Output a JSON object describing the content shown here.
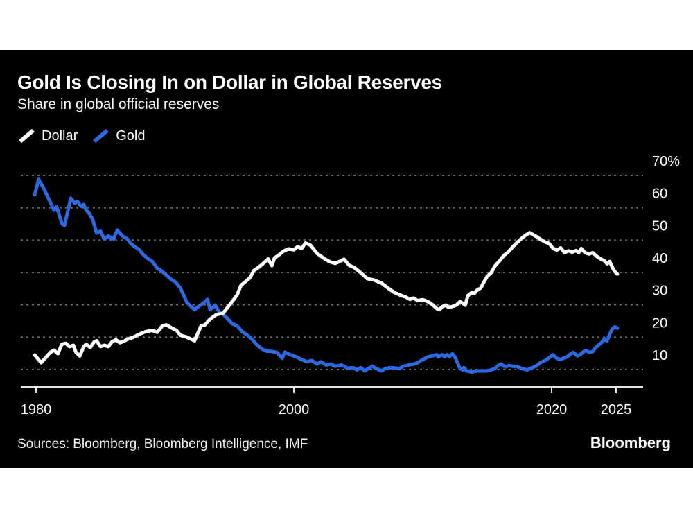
{
  "card": {
    "title": "Gold Is Closing In on Dollar in Global Reserves",
    "subtitle": "Share in global official reserves",
    "source": "Sources: Bloomberg, Bloomberg Intelligence, IMF",
    "brand": "Bloomberg"
  },
  "colors": {
    "background": "#000000",
    "dollar_line": "#ffffff",
    "gold_line": "#2c68e0",
    "gridline": "#6e6e6e",
    "axis": "#e6e6e6",
    "text": "#ffffff"
  },
  "legend": [
    {
      "label": "Dollar",
      "color": "#ffffff"
    },
    {
      "label": "Gold",
      "color": "#2c68e0"
    }
  ],
  "chart_data": {
    "type": "line",
    "title": "Gold Is Closing In on Dollar in Global Reserves",
    "subtitle": "Share in global official reserves",
    "xlabel": "",
    "ylabel": "%",
    "xlim": [
      1978.8,
      2027.3
    ],
    "ylim": [
      4.6,
      74
    ],
    "grid": "horizontal-dotted",
    "legend_position": "top-left",
    "x_ticks": [
      {
        "year": 1980,
        "label": "1980"
      },
      {
        "year": 2000,
        "label": "2000"
      },
      {
        "year": 2020,
        "label": "2020"
      },
      {
        "year": 2025,
        "label": "2025"
      }
    ],
    "y_ticks": [
      {
        "value": 70,
        "label": "70%"
      },
      {
        "value": 60,
        "label": "60"
      },
      {
        "value": 50,
        "label": "50"
      },
      {
        "value": 40,
        "label": "40"
      },
      {
        "value": 30,
        "label": "30"
      },
      {
        "value": 20,
        "label": "20"
      },
      {
        "value": 10,
        "label": "10"
      }
    ],
    "series": [
      {
        "name": "Gold",
        "color": "#2c68e0",
        "points": [
          [
            1979.9,
            64.0
          ],
          [
            1980.2,
            68.8
          ],
          [
            1980.6,
            66.0
          ],
          [
            1981.1,
            61.7
          ],
          [
            1981.4,
            59.2
          ],
          [
            1981.6,
            60.3
          ],
          [
            1982.0,
            55.2
          ],
          [
            1982.2,
            54.4
          ],
          [
            1982.7,
            63.0
          ],
          [
            1983.0,
            61.4
          ],
          [
            1983.2,
            62.0
          ],
          [
            1983.5,
            60.4
          ],
          [
            1983.7,
            61.0
          ],
          [
            1983.9,
            59.2
          ],
          [
            1984.1,
            58.4
          ],
          [
            1984.4,
            56.4
          ],
          [
            1984.7,
            52.2
          ],
          [
            1985.0,
            52.8
          ],
          [
            1985.3,
            50.3
          ],
          [
            1985.6,
            51.3
          ],
          [
            1986.0,
            50.3
          ],
          [
            1986.3,
            53.1
          ],
          [
            1986.7,
            51.3
          ],
          [
            1987.1,
            50.3
          ],
          [
            1987.3,
            49.2
          ],
          [
            1987.6,
            48.1
          ],
          [
            1988.0,
            47.1
          ],
          [
            1988.3,
            45.6
          ],
          [
            1988.7,
            44.2
          ],
          [
            1989.0,
            43.5
          ],
          [
            1989.4,
            41.3
          ],
          [
            1989.7,
            40.6
          ],
          [
            1990.1,
            39.2
          ],
          [
            1990.5,
            37.8
          ],
          [
            1990.8,
            37.1
          ],
          [
            1991.2,
            35.2
          ],
          [
            1991.7,
            30.8
          ],
          [
            1992.0,
            29.6
          ],
          [
            1992.3,
            28.5
          ],
          [
            1992.6,
            29.5
          ],
          [
            1993.0,
            30.6
          ],
          [
            1993.3,
            31.7
          ],
          [
            1993.5,
            28.5
          ],
          [
            1993.9,
            29.9
          ],
          [
            1994.2,
            27.8
          ],
          [
            1994.5,
            27.1
          ],
          [
            1994.8,
            26.0
          ],
          [
            1995.2,
            24.2
          ],
          [
            1995.6,
            23.5
          ],
          [
            1996.0,
            21.7
          ],
          [
            1996.4,
            20.6
          ],
          [
            1996.8,
            19.2
          ],
          [
            1997.1,
            17.8
          ],
          [
            1997.5,
            16.4
          ],
          [
            1997.9,
            15.7
          ],
          [
            1998.3,
            15.6
          ],
          [
            1998.7,
            15.3
          ],
          [
            1999.1,
            13.5
          ],
          [
            1999.3,
            15.4
          ],
          [
            1999.7,
            14.6
          ],
          [
            2000.2,
            13.9
          ],
          [
            2000.6,
            13.1
          ],
          [
            2001.0,
            12.4
          ],
          [
            2001.4,
            12.8
          ],
          [
            2001.8,
            11.7
          ],
          [
            2002.1,
            12.4
          ],
          [
            2002.5,
            11.4
          ],
          [
            2002.9,
            11.7
          ],
          [
            2003.2,
            11.0
          ],
          [
            2003.7,
            11.4
          ],
          [
            2004.2,
            10.4
          ],
          [
            2004.6,
            10.6
          ],
          [
            2004.9,
            9.9
          ],
          [
            2005.2,
            10.6
          ],
          [
            2005.5,
            9.6
          ],
          [
            2005.9,
            10.6
          ],
          [
            2006.1,
            11.0
          ],
          [
            2006.4,
            10.3
          ],
          [
            2006.8,
            9.6
          ],
          [
            2007.1,
            10.3
          ],
          [
            2007.5,
            10.6
          ],
          [
            2007.8,
            10.5
          ],
          [
            2008.2,
            10.3
          ],
          [
            2008.5,
            11.0
          ],
          [
            2008.9,
            11.4
          ],
          [
            2009.3,
            11.7
          ],
          [
            2009.6,
            12.1
          ],
          [
            2010.0,
            13.1
          ],
          [
            2010.4,
            13.9
          ],
          [
            2010.7,
            14.2
          ],
          [
            2011.1,
            14.6
          ],
          [
            2011.2,
            13.9
          ],
          [
            2011.5,
            14.6
          ],
          [
            2011.7,
            13.9
          ],
          [
            2011.9,
            14.6
          ],
          [
            2012.1,
            14.0
          ],
          [
            2012.3,
            14.9
          ],
          [
            2012.5,
            13.9
          ],
          [
            2012.7,
            12.1
          ],
          [
            2012.9,
            10.3
          ],
          [
            2013.1,
            9.9
          ],
          [
            2013.2,
            10.6
          ],
          [
            2013.4,
            9.6
          ],
          [
            2013.8,
            9.2
          ],
          [
            2014.2,
            9.6
          ],
          [
            2014.6,
            9.5
          ],
          [
            2015.0,
            9.6
          ],
          [
            2015.3,
            9.9
          ],
          [
            2015.6,
            10.3
          ],
          [
            2015.9,
            11.4
          ],
          [
            2016.1,
            11.7
          ],
          [
            2016.4,
            10.8
          ],
          [
            2016.7,
            11.2
          ],
          [
            2017.0,
            11.0
          ],
          [
            2017.4,
            10.8
          ],
          [
            2017.7,
            10.3
          ],
          [
            2018.1,
            9.9
          ],
          [
            2018.5,
            10.6
          ],
          [
            2018.8,
            11.0
          ],
          [
            2019.1,
            12.1
          ],
          [
            2019.5,
            12.8
          ],
          [
            2019.9,
            13.9
          ],
          [
            2020.1,
            14.6
          ],
          [
            2020.4,
            13.5
          ],
          [
            2020.7,
            13.1
          ],
          [
            2020.9,
            13.5
          ],
          [
            2021.2,
            13.9
          ],
          [
            2021.5,
            14.9
          ],
          [
            2021.7,
            15.3
          ],
          [
            2022.0,
            14.2
          ],
          [
            2022.2,
            14.6
          ],
          [
            2022.5,
            15.6
          ],
          [
            2022.7,
            15.9
          ],
          [
            2022.9,
            15.3
          ],
          [
            2023.2,
            15.6
          ],
          [
            2023.4,
            16.7
          ],
          [
            2023.7,
            17.8
          ],
          [
            2024.0,
            18.8
          ],
          [
            2024.1,
            19.6
          ],
          [
            2024.3,
            18.8
          ],
          [
            2024.5,
            20.9
          ],
          [
            2024.7,
            22.5
          ],
          [
            2024.9,
            23.2
          ],
          [
            2025.1,
            22.8
          ]
        ]
      },
      {
        "name": "Dollar",
        "color": "#ffffff",
        "points": [
          [
            1979.9,
            14.5
          ],
          [
            1980.4,
            12.1
          ],
          [
            1981.1,
            15.3
          ],
          [
            1981.4,
            16.0
          ],
          [
            1981.7,
            14.9
          ],
          [
            1982.0,
            17.8
          ],
          [
            1982.3,
            18.1
          ],
          [
            1982.6,
            17.1
          ],
          [
            1982.9,
            17.5
          ],
          [
            1983.1,
            15.3
          ],
          [
            1983.4,
            14.2
          ],
          [
            1983.7,
            17.1
          ],
          [
            1983.9,
            17.8
          ],
          [
            1984.2,
            16.8
          ],
          [
            1984.5,
            18.5
          ],
          [
            1984.7,
            18.9
          ],
          [
            1985.0,
            17.1
          ],
          [
            1985.3,
            17.5
          ],
          [
            1985.6,
            17.1
          ],
          [
            1985.9,
            18.6
          ],
          [
            1986.2,
            19.2
          ],
          [
            1986.5,
            18.3
          ],
          [
            1986.8,
            18.7
          ],
          [
            1987.1,
            19.4
          ],
          [
            1987.5,
            19.9
          ],
          [
            1988.0,
            20.9
          ],
          [
            1988.5,
            21.7
          ],
          [
            1989.0,
            22.1
          ],
          [
            1989.4,
            21.5
          ],
          [
            1989.8,
            23.5
          ],
          [
            1990.1,
            23.8
          ],
          [
            1990.5,
            22.9
          ],
          [
            1990.9,
            22.1
          ],
          [
            1991.2,
            20.6
          ],
          [
            1991.7,
            20.0
          ],
          [
            1992.3,
            18.9
          ],
          [
            1992.8,
            23.5
          ],
          [
            1993.1,
            23.8
          ],
          [
            1993.5,
            25.6
          ],
          [
            1994.0,
            27.0
          ],
          [
            1994.5,
            27.4
          ],
          [
            1995.0,
            29.9
          ],
          [
            1995.3,
            31.5
          ],
          [
            1995.6,
            33.1
          ],
          [
            1995.9,
            36.0
          ],
          [
            1996.2,
            37.0
          ],
          [
            1996.6,
            38.4
          ],
          [
            1996.9,
            40.6
          ],
          [
            1997.3,
            41.7
          ],
          [
            1997.6,
            42.7
          ],
          [
            1998.0,
            44.2
          ],
          [
            1998.3,
            42.1
          ],
          [
            1998.5,
            44.5
          ],
          [
            1998.8,
            45.3
          ],
          [
            1999.2,
            46.6
          ],
          [
            1999.6,
            47.3
          ],
          [
            2000.0,
            47.0
          ],
          [
            2000.3,
            48.0
          ],
          [
            2000.6,
            47.4
          ],
          [
            2000.9,
            49.1
          ],
          [
            2001.3,
            48.4
          ],
          [
            2001.8,
            45.9
          ],
          [
            2002.4,
            44.2
          ],
          [
            2002.8,
            43.3
          ],
          [
            2003.2,
            42.8
          ],
          [
            2003.6,
            43.5
          ],
          [
            2003.9,
            44.1
          ],
          [
            2004.3,
            42.2
          ],
          [
            2004.7,
            41.5
          ],
          [
            2005.2,
            39.9
          ],
          [
            2005.7,
            38.1
          ],
          [
            2006.2,
            37.7
          ],
          [
            2006.8,
            36.7
          ],
          [
            2007.3,
            35.2
          ],
          [
            2007.8,
            33.8
          ],
          [
            2008.4,
            32.8
          ],
          [
            2008.7,
            32.4
          ],
          [
            2009.0,
            31.7
          ],
          [
            2009.3,
            32.1
          ],
          [
            2009.6,
            31.3
          ],
          [
            2010.0,
            31.6
          ],
          [
            2010.4,
            31.0
          ],
          [
            2010.8,
            29.9
          ],
          [
            2011.1,
            28.8
          ],
          [
            2011.3,
            28.5
          ],
          [
            2011.5,
            29.4
          ],
          [
            2011.8,
            29.9
          ],
          [
            2012.0,
            29.2
          ],
          [
            2012.3,
            29.5
          ],
          [
            2012.6,
            29.9
          ],
          [
            2012.9,
            31.0
          ],
          [
            2013.1,
            30.5
          ],
          [
            2013.3,
            29.9
          ],
          [
            2013.5,
            32.8
          ],
          [
            2013.8,
            33.8
          ],
          [
            2014.0,
            33.5
          ],
          [
            2014.2,
            34.5
          ],
          [
            2014.5,
            35.2
          ],
          [
            2014.8,
            37.4
          ],
          [
            2015.0,
            38.8
          ],
          [
            2015.3,
            39.9
          ],
          [
            2015.6,
            42.0
          ],
          [
            2016.0,
            43.8
          ],
          [
            2016.3,
            45.3
          ],
          [
            2016.6,
            46.2
          ],
          [
            2017.0,
            48.0
          ],
          [
            2017.3,
            49.2
          ],
          [
            2017.6,
            50.3
          ],
          [
            2018.0,
            51.6
          ],
          [
            2018.3,
            52.3
          ],
          [
            2018.6,
            51.6
          ],
          [
            2018.9,
            50.9
          ],
          [
            2019.2,
            50.1
          ],
          [
            2019.5,
            49.4
          ],
          [
            2019.8,
            49.0
          ],
          [
            2020.1,
            47.5
          ],
          [
            2020.4,
            46.9
          ],
          [
            2020.7,
            47.6
          ],
          [
            2021.0,
            46.1
          ],
          [
            2021.3,
            46.7
          ],
          [
            2021.6,
            46.3
          ],
          [
            2021.9,
            46.8
          ],
          [
            2022.1,
            46.1
          ],
          [
            2022.3,
            47.4
          ],
          [
            2022.6,
            46.1
          ],
          [
            2022.9,
            45.7
          ],
          [
            2023.2,
            46.1
          ],
          [
            2023.5,
            45.0
          ],
          [
            2023.8,
            44.2
          ],
          [
            2024.1,
            43.6
          ],
          [
            2024.3,
            42.7
          ],
          [
            2024.5,
            43.4
          ],
          [
            2024.7,
            41.7
          ],
          [
            2024.9,
            40.3
          ],
          [
            2025.1,
            39.5
          ]
        ]
      }
    ]
  }
}
